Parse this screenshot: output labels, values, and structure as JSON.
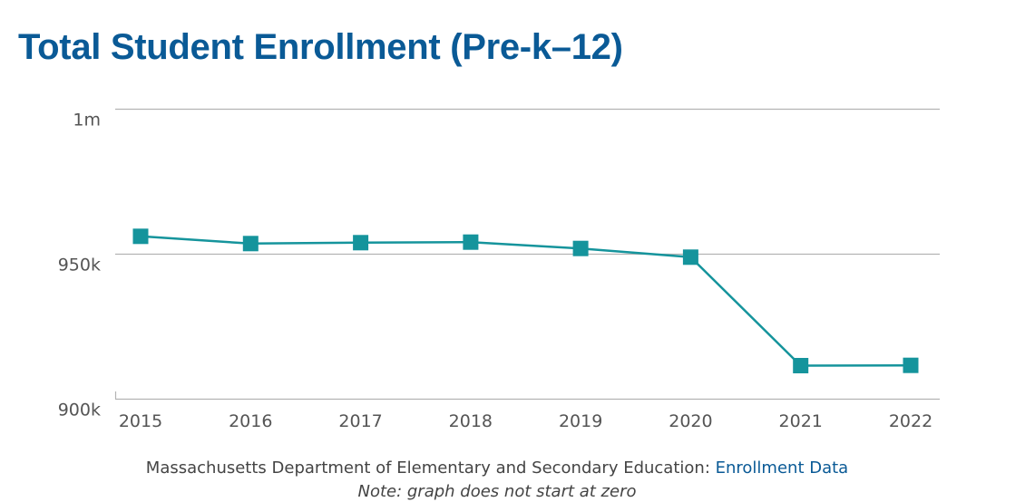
{
  "chart_data": {
    "type": "line",
    "title": "Total Student Enrollment (Pre-k–12)",
    "xlabel": "",
    "ylabel": "",
    "categories": [
      "2015",
      "2016",
      "2017",
      "2018",
      "2019",
      "2020",
      "2021",
      "2022"
    ],
    "series": [
      {
        "name": "Total Student Enrollment",
        "values": [
          956000,
          953500,
          953800,
          954000,
          951800,
          948800,
          911400,
          911500
        ],
        "color": "#15949c",
        "marker": "square"
      }
    ],
    "ylim": [
      900000,
      1000000
    ],
    "yticks": [
      {
        "value": 900000,
        "label": "900k"
      },
      {
        "value": 950000,
        "label": "950k"
      },
      {
        "value": 1000000,
        "label": "1m"
      }
    ],
    "grid": true,
    "legend": "none"
  },
  "source": {
    "text": "Massachusetts Department of Elementary and Secondary Education:",
    "link_text": "Enrollment Data",
    "link_color": "#0a5a96"
  },
  "note": "Note: graph does not start at zero",
  "colors": {
    "title": "#0a5a96",
    "gridline": "#b3b3b3",
    "axis_text": "#555555"
  }
}
